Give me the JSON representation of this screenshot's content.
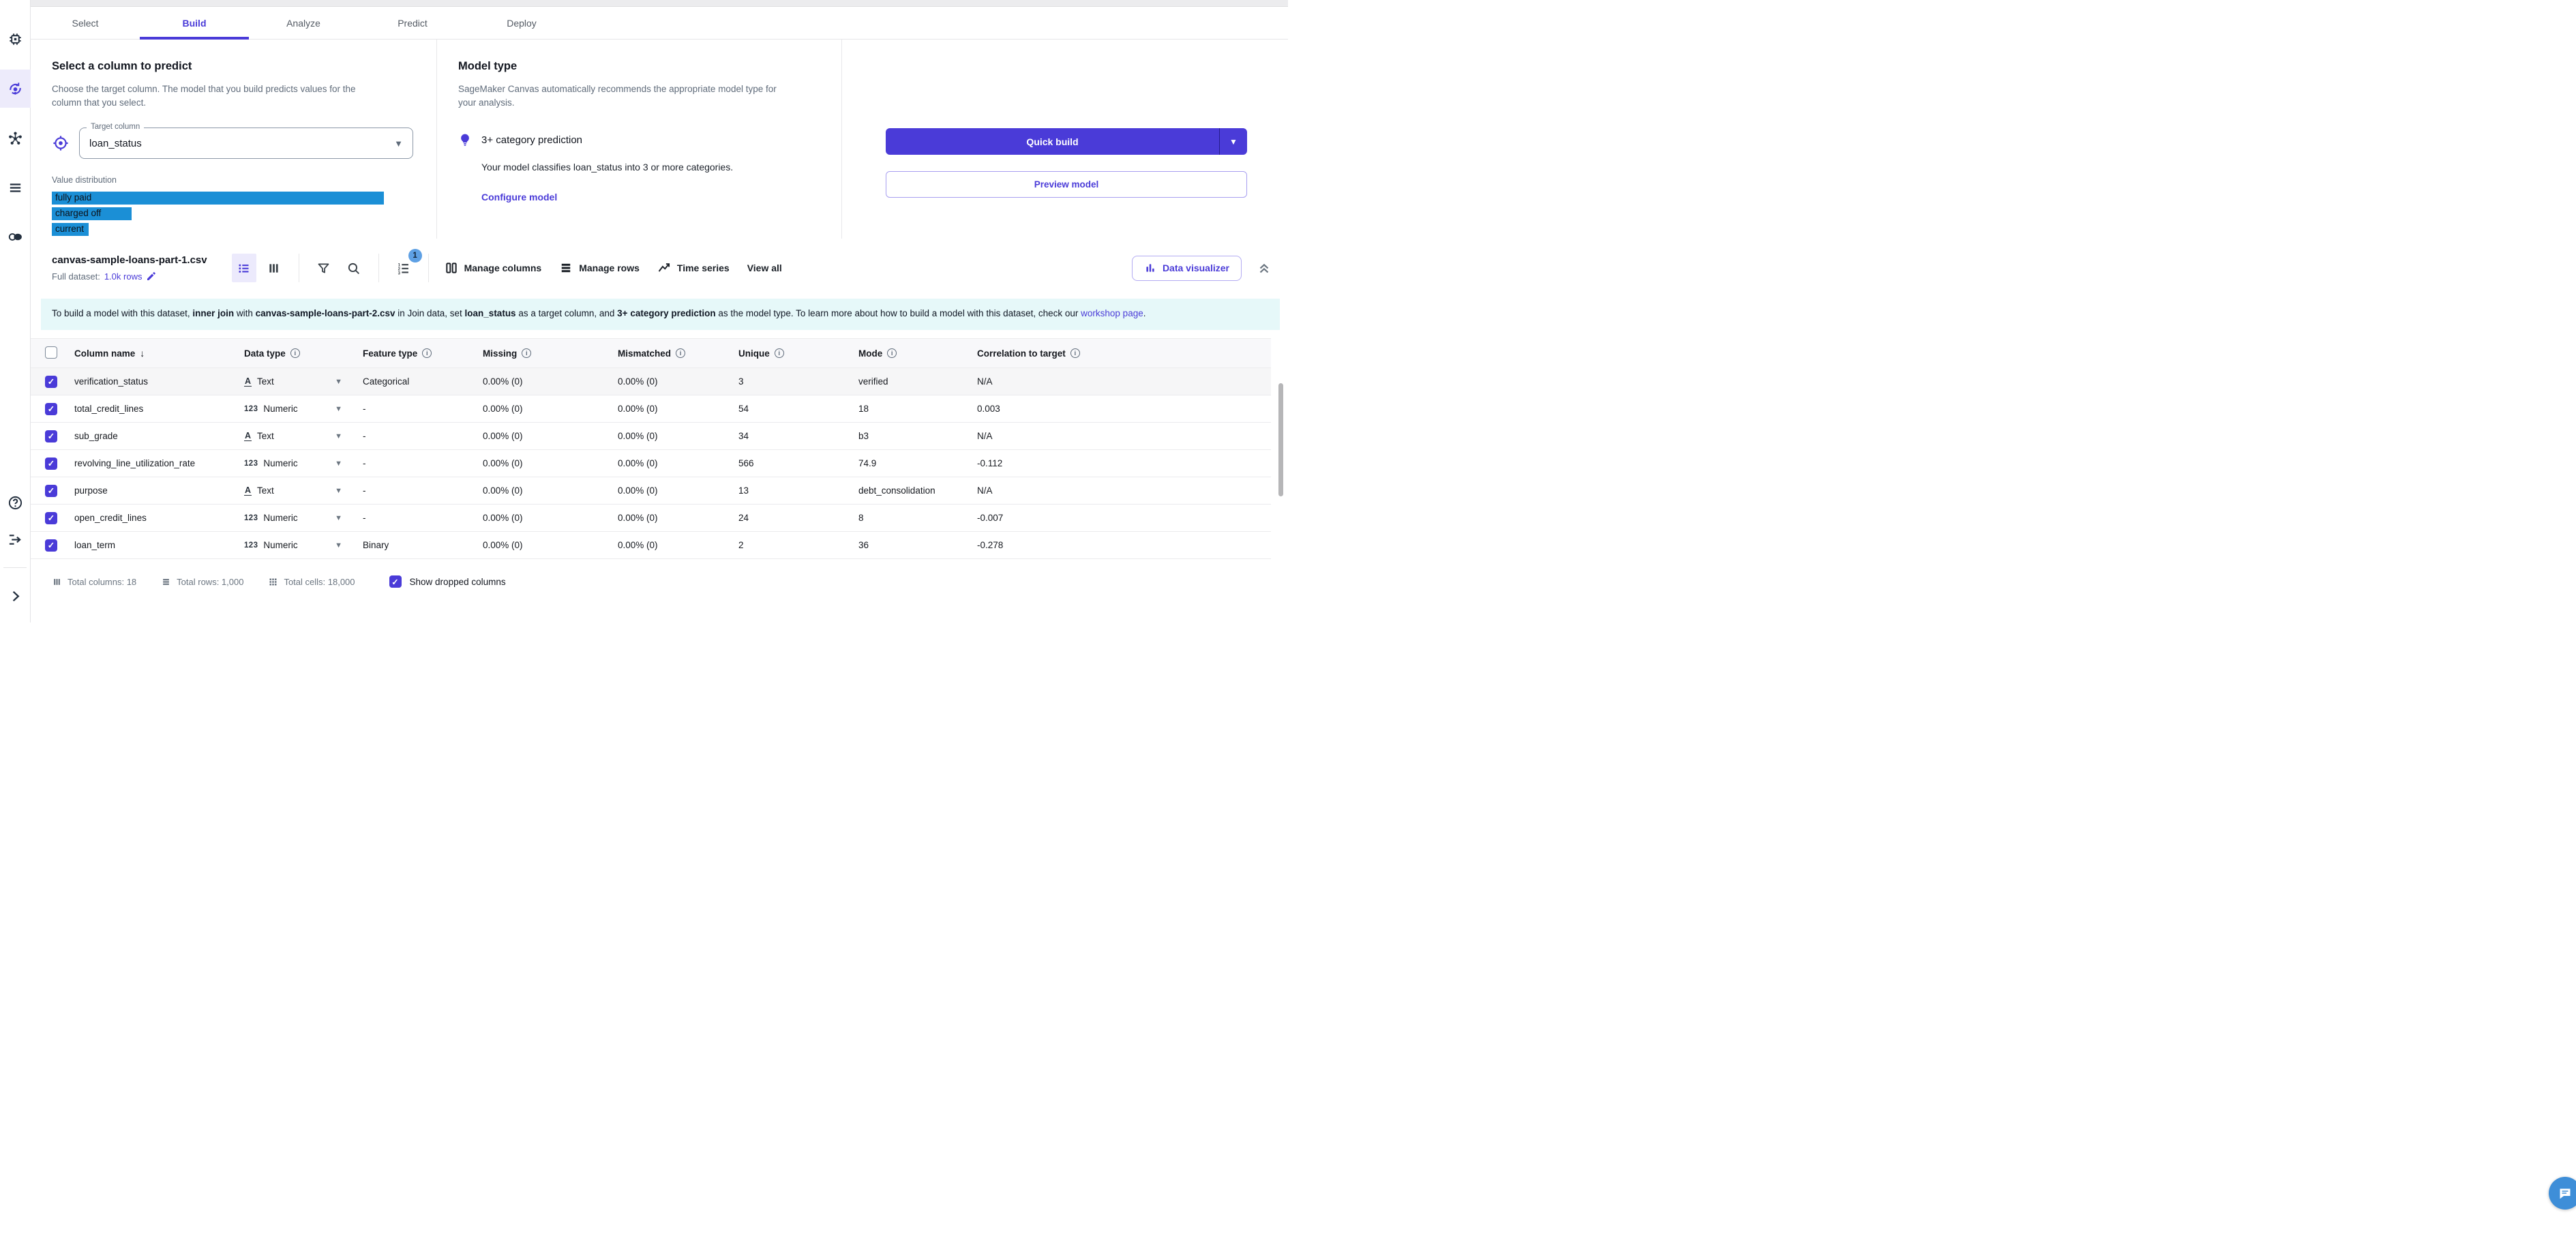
{
  "tabs": [
    {
      "label": "Select",
      "active": false
    },
    {
      "label": "Build",
      "active": true
    },
    {
      "label": "Analyze",
      "active": false
    },
    {
      "label": "Predict",
      "active": false
    },
    {
      "label": "Deploy",
      "active": false
    }
  ],
  "select_column": {
    "heading": "Select a column to predict",
    "description": "Choose the target column. The model that you build predicts values for the column that you select.",
    "target_label": "Target column",
    "target_value": "loan_status",
    "distribution_label": "Value distribution",
    "bars": [
      {
        "label": "fully paid",
        "pct": 100
      },
      {
        "label": "charged off",
        "pct": 24
      },
      {
        "label": "current",
        "pct": 11
      }
    ]
  },
  "model_type": {
    "heading": "Model type",
    "description": "SageMaker Canvas automatically recommends the appropriate model type for your analysis.",
    "recommendation": "3+ category prediction",
    "recommendation_detail": "Your model classifies loan_status into 3 or more categories.",
    "configure_label": "Configure model"
  },
  "actions": {
    "quick_build": "Quick build",
    "preview_model": "Preview model"
  },
  "dataset": {
    "name": "canvas-sample-loans-part-1.csv",
    "full_dataset_label": "Full dataset:",
    "rows_link": "1.0k rows",
    "sort_badge": "1",
    "manage_columns": "Manage columns",
    "manage_rows": "Manage rows",
    "time_series": "Time series",
    "view_all": "View all",
    "data_visualizer": "Data visualizer"
  },
  "banner": {
    "part1": "To build a model with this dataset, ",
    "bold1": "inner join",
    "part2": " with ",
    "bold2": "canvas-sample-loans-part-2.csv",
    "part3": " in Join data, set ",
    "bold3": "loan_status",
    "part4": " as a target column, and ",
    "bold4": "3+ category prediction",
    "part5": " as the model type. To learn more about how to build a model with this dataset, check our ",
    "link": "workshop page",
    "part6": "."
  },
  "table": {
    "headers": [
      "Column name",
      "Data type",
      "Feature type",
      "Missing",
      "Mismatched",
      "Unique",
      "Mode",
      "Correlation to target"
    ],
    "rows": [
      {
        "name": "verification_status",
        "data_type": "Text",
        "feature": "Categorical",
        "missing": "0.00% (0)",
        "mismatched": "0.00% (0)",
        "unique": "3",
        "mode": "verified",
        "corr": "N/A",
        "hover": true
      },
      {
        "name": "total_credit_lines",
        "data_type": "Numeric",
        "feature": "-",
        "missing": "0.00% (0)",
        "mismatched": "0.00% (0)",
        "unique": "54",
        "mode": "18",
        "corr": "0.003",
        "hover": false
      },
      {
        "name": "sub_grade",
        "data_type": "Text",
        "feature": "-",
        "missing": "0.00% (0)",
        "mismatched": "0.00% (0)",
        "unique": "34",
        "mode": "b3",
        "corr": "N/A",
        "hover": false
      },
      {
        "name": "revolving_line_utilization_rate",
        "data_type": "Numeric",
        "feature": "-",
        "missing": "0.00% (0)",
        "mismatched": "0.00% (0)",
        "unique": "566",
        "mode": "74.9",
        "corr": "-0.112",
        "hover": false
      },
      {
        "name": "purpose",
        "data_type": "Text",
        "feature": "-",
        "missing": "0.00% (0)",
        "mismatched": "0.00% (0)",
        "unique": "13",
        "mode": "debt_consolidation",
        "corr": "N/A",
        "hover": false
      },
      {
        "name": "open_credit_lines",
        "data_type": "Numeric",
        "feature": "-",
        "missing": "0.00% (0)",
        "mismatched": "0.00% (0)",
        "unique": "24",
        "mode": "8",
        "corr": "-0.007",
        "hover": false
      },
      {
        "name": "loan_term",
        "data_type": "Numeric",
        "feature": "Binary",
        "missing": "0.00% (0)",
        "mismatched": "0.00% (0)",
        "unique": "2",
        "mode": "36",
        "corr": "-0.278",
        "hover": false
      }
    ]
  },
  "footer": {
    "total_columns": "Total columns: 18",
    "total_rows": "Total rows: 1,000",
    "total_cells": "Total cells: 18,000",
    "show_dropped": "Show dropped columns"
  },
  "colors": {
    "accent": "#4a3bd8",
    "bar_blue": "#1b8fd6",
    "banner_bg": "#e6f8f9",
    "badge_blue": "#5ea0e4",
    "chat_blue": "#3e8ed8"
  }
}
